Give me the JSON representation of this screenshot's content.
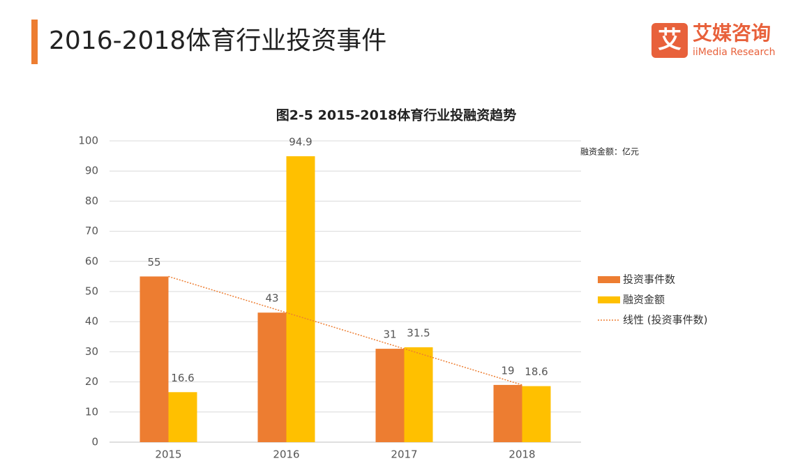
{
  "header": {
    "title": "2016-2018体育行业投资事件",
    "logo_icon": "艾",
    "logo_name": "艾媒咨询",
    "logo_subtitle": "iiMedia Research"
  },
  "chart_data": {
    "type": "bar",
    "title": "图2-5 2015-2018体育行业投融资趋势",
    "unit_note": "融资金额：亿元",
    "categories": [
      "2015",
      "2016",
      "2017",
      "2018"
    ],
    "series": [
      {
        "name": "投资事件数",
        "color": "#ED7D31",
        "values": [
          55,
          43,
          31,
          19
        ]
      },
      {
        "name": "融资金额",
        "color": "#FFC000",
        "values": [
          16.6,
          94.9,
          31.5,
          18.6
        ]
      }
    ],
    "trendline": {
      "name": "线性 (投资事件数)",
      "color": "#ED7D31",
      "style": "dotted",
      "values": [
        55,
        43,
        31,
        19
      ]
    },
    "ylim": [
      0,
      100
    ],
    "yticks": [
      0,
      10,
      20,
      30,
      40,
      50,
      60,
      70,
      80,
      90,
      100
    ],
    "grid": true,
    "legend": "right"
  }
}
